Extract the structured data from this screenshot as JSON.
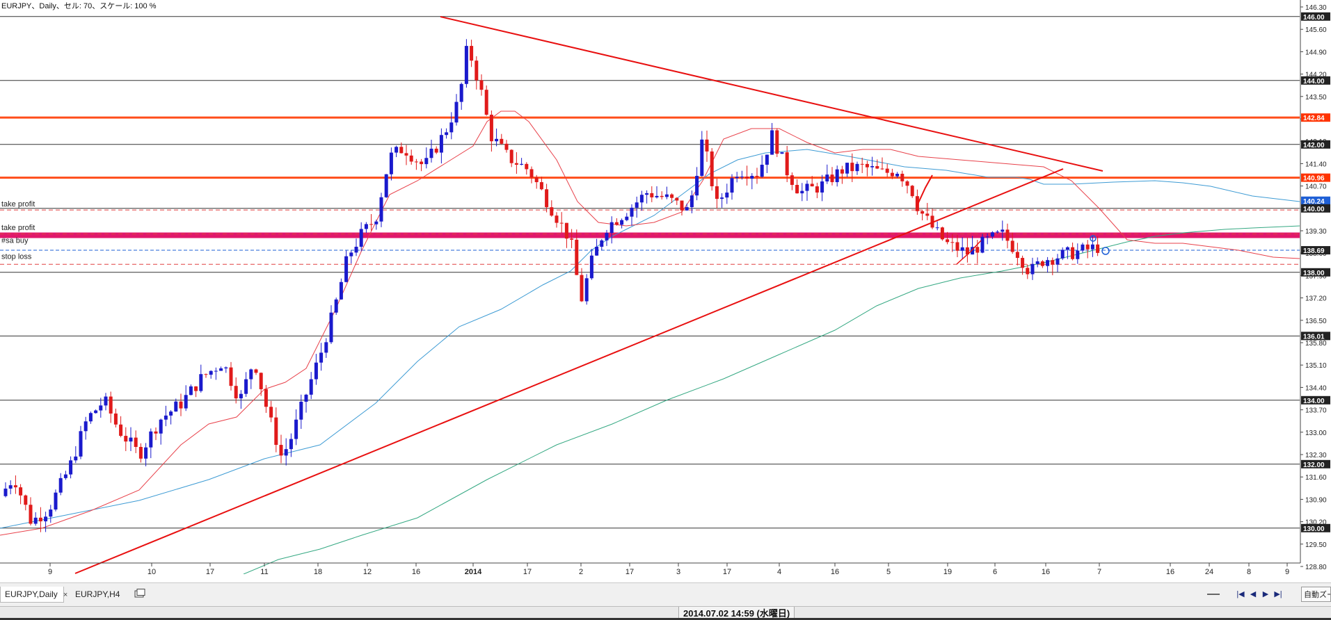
{
  "chart_info": "EURJPY、Daily、セル: 70、スケール: 100 %",
  "axis_labels": [
    "146.30",
    "145.60",
    "144.90",
    "144.20",
    "143.50",
    "142.80",
    "142.10",
    "141.40",
    "140.70",
    "140.00",
    "139.30",
    "138.60",
    "137.90",
    "137.20",
    "136.50",
    "135.80",
    "135.10",
    "134.40",
    "133.70",
    "133.00",
    "132.30",
    "131.60",
    "130.90",
    "130.20",
    "129.50",
    "128.80"
  ],
  "axis_values": [
    146.3,
    145.6,
    144.9,
    144.2,
    143.5,
    142.8,
    142.1,
    141.4,
    140.7,
    140.0,
    139.3,
    138.6,
    137.9,
    137.2,
    136.5,
    135.8,
    135.1,
    134.4,
    133.7,
    133.0,
    132.3,
    131.6,
    130.9,
    130.2,
    129.5,
    128.8
  ],
  "price_boxes": [
    {
      "label": "146.00",
      "value": 146.0,
      "color": "#222222"
    },
    {
      "label": "144.00",
      "value": 144.0,
      "color": "#222222"
    },
    {
      "label": "142.84",
      "value": 142.84,
      "color": "#ff3300"
    },
    {
      "label": "142.00",
      "value": 142.0,
      "color": "#222222"
    },
    {
      "label": "140.96",
      "value": 140.96,
      "color": "#ff3300"
    },
    {
      "label": "140.24",
      "value": 140.24,
      "color": "#1e5fd6"
    },
    {
      "label": "140.00",
      "value": 140.0,
      "color": "#222222"
    },
    {
      "label": "138.69",
      "value": 138.69,
      "color": "#222222"
    },
    {
      "label": "138.00",
      "value": 138.0,
      "color": "#222222"
    },
    {
      "label": "136.01",
      "value": 136.01,
      "color": "#222222"
    },
    {
      "label": "134.00",
      "value": 134.0,
      "color": "#222222"
    },
    {
      "label": "132.00",
      "value": 132.0,
      "color": "#222222"
    },
    {
      "label": "130.00",
      "value": 130.0,
      "color": "#222222"
    }
  ],
  "hlines": [
    {
      "value": 146.0,
      "color": "#333333",
      "width": 1,
      "dash": ""
    },
    {
      "value": 144.0,
      "color": "#333333",
      "width": 1,
      "dash": ""
    },
    {
      "value": 142.84,
      "color": "#ff4d1a",
      "width": 3,
      "dash": ""
    },
    {
      "value": 142.0,
      "color": "#333333",
      "width": 1,
      "dash": ""
    },
    {
      "value": 140.96,
      "color": "#ff4d1a",
      "width": 3,
      "dash": ""
    },
    {
      "value": 140.0,
      "color": "#333333",
      "width": 1,
      "dash": ""
    },
    {
      "value": 136.01,
      "color": "#333333",
      "width": 1,
      "dash": ""
    },
    {
      "value": 134.0,
      "color": "#333333",
      "width": 1,
      "dash": ""
    },
    {
      "value": 132.0,
      "color": "#333333",
      "width": 1,
      "dash": ""
    },
    {
      "value": 130.0,
      "color": "#333333",
      "width": 1,
      "dash": ""
    },
    {
      "value": 138.0,
      "color": "#333333",
      "width": 1,
      "dash": ""
    },
    {
      "value": 139.16,
      "color": "#e0186c",
      "width": 8,
      "dash": ""
    },
    {
      "value": 138.69,
      "color": "#1e5fd6",
      "width": 1,
      "dash": "5,3"
    },
    {
      "value": 138.25,
      "color": "#e04040",
      "width": 1,
      "dash": "6,4"
    },
    {
      "value": 139.95,
      "color": "#e04040",
      "width": 1,
      "dash": "6,4"
    },
    {
      "value": 139.2,
      "color": "#e04040",
      "width": 1,
      "dash": "6,4"
    }
  ],
  "order_labels": [
    {
      "text": "take profit",
      "value": 140.02
    },
    {
      "text": "take profit",
      "value": 139.28
    },
    {
      "text": "#sa buy",
      "value": 138.88
    },
    {
      "text": "stop loss",
      "value": 138.38
    }
  ],
  "x_ticks": [
    "9",
    "10",
    "17",
    "11",
    "18",
    "12",
    "16",
    "2014",
    "17",
    "2",
    "17",
    "3",
    "17",
    "4",
    "16",
    "5",
    "19",
    "6",
    "16",
    "7",
    "16",
    "24",
    "8",
    "9"
  ],
  "chart_data": {
    "type": "candlestick",
    "symbol": "EURJPY",
    "timeframe": "Daily",
    "ylim": [
      128.5,
      146.6
    ],
    "current_price": 138.69,
    "candles": []
  },
  "tabs": [
    {
      "label": "EURJPY,Daily",
      "active": true
    },
    {
      "label": "EURJPY,H4",
      "active": false
    }
  ],
  "tab_close": "×",
  "status_time": "2014.07.02 14:59 (水曜日)",
  "nav_icons": [
    "first-page-icon",
    "prev-icon",
    "next-icon",
    "last-page-icon"
  ],
  "nav_glyphs": [
    "|◀",
    "◀",
    "▶",
    "▶|"
  ],
  "auto_scroll_label": "自動ズーム",
  "colors": {
    "bull": "#1a1acc",
    "bear": "#e01a1a",
    "ma_fast": "#e8414a",
    "ma_mid": "#3d9bd4",
    "ma_slow": "#34a882",
    "trend": "#e81010"
  }
}
